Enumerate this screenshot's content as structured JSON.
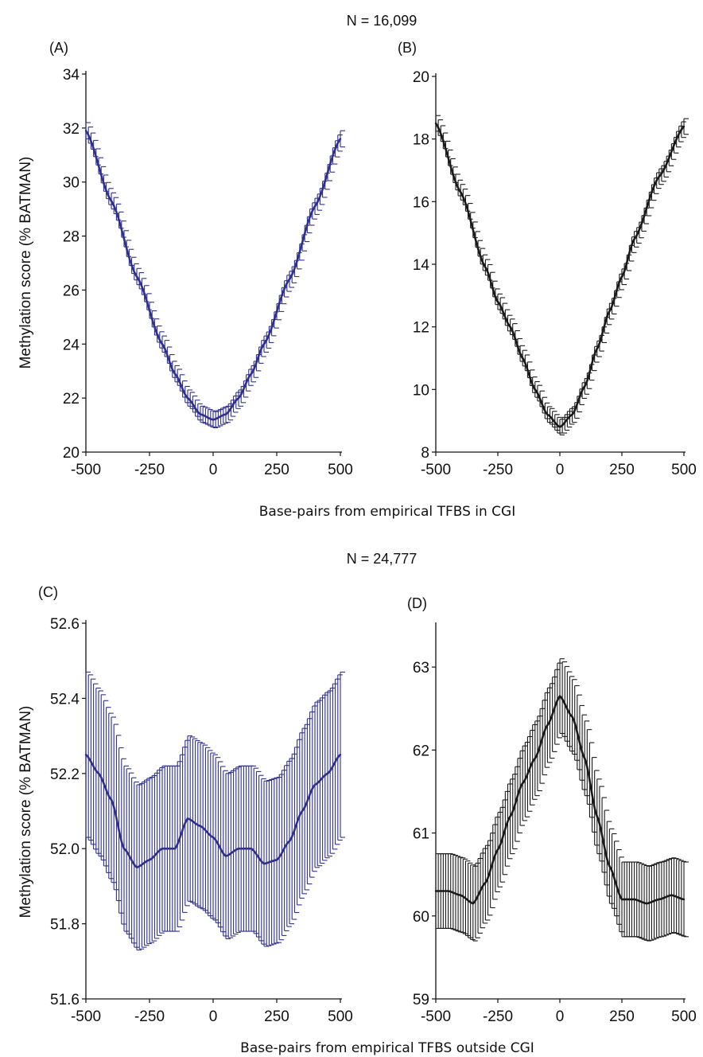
{
  "figure": {
    "top_n_label": "N = 16,099",
    "bottom_n_label": "N = 24,777",
    "top_xlabel": "Base-pairs from empirical TFBS in CGI",
    "bottom_xlabel": "Base-pairs from empirical TFBS outside CGI",
    "ylabel": "Methylation score (% BATMAN)"
  },
  "chart_data": [
    {
      "panel": "(A)",
      "type": "line",
      "color": "#2f2f8f",
      "xlim": [
        -500,
        500
      ],
      "ylim": [
        20,
        34
      ],
      "xticks": [
        -500,
        -250,
        0,
        250,
        500
      ],
      "yticks": [
        20,
        22,
        24,
        26,
        28,
        30,
        32,
        34
      ],
      "error_bars": true,
      "x": [
        -500,
        -400,
        -300,
        -200,
        -150,
        -100,
        -50,
        0,
        50,
        100,
        150,
        200,
        300,
        400,
        500
      ],
      "y": [
        31.9,
        29.3,
        26.5,
        24.0,
        22.9,
        22.0,
        21.4,
        21.2,
        21.4,
        22.0,
        22.9,
        24.0,
        26.4,
        29.1,
        31.6
      ],
      "yerr": 0.3
    },
    {
      "panel": "(B)",
      "type": "line",
      "color": "#1a1a1a",
      "xlim": [
        -500,
        500
      ],
      "ylim": [
        8,
        20
      ],
      "xticks": [
        -500,
        -250,
        0,
        250,
        500
      ],
      "yticks": [
        8,
        10,
        12,
        14,
        16,
        18,
        20
      ],
      "error_bars": true,
      "x": [
        -500,
        -400,
        -300,
        -250,
        -200,
        -150,
        -100,
        -50,
        0,
        50,
        100,
        150,
        200,
        250,
        300,
        400,
        500
      ],
      "y": [
        18.5,
        16.3,
        13.9,
        12.8,
        12.0,
        11.0,
        10.0,
        9.2,
        8.8,
        9.2,
        10.1,
        11.3,
        12.5,
        13.6,
        14.8,
        16.8,
        18.4
      ],
      "yerr": 0.25
    },
    {
      "panel": "(C)",
      "type": "line",
      "color": "#2f2f8f",
      "xlim": [
        -500,
        500
      ],
      "ylim": [
        51.6,
        52.6
      ],
      "xticks": [
        -500,
        -250,
        0,
        250,
        500
      ],
      "yticks": [
        51.6,
        51.8,
        52.0,
        52.2,
        52.4,
        52.6
      ],
      "error_bars": true,
      "x": [
        -500,
        -450,
        -400,
        -350,
        -300,
        -250,
        -200,
        -150,
        -100,
        -50,
        0,
        50,
        100,
        150,
        200,
        250,
        300,
        350,
        400,
        450,
        500
      ],
      "y": [
        52.25,
        52.2,
        52.13,
        52.0,
        51.95,
        51.97,
        52.0,
        52.0,
        52.08,
        52.06,
        52.03,
        51.98,
        52.0,
        52.0,
        51.96,
        51.97,
        52.02,
        52.1,
        52.17,
        52.2,
        52.25
      ],
      "yerr": 0.22
    },
    {
      "panel": "(D)",
      "type": "line",
      "color": "#1a1a1a",
      "xlim": [
        -500,
        500
      ],
      "ylim": [
        59,
        63.5
      ],
      "xticks": [
        -500,
        -250,
        0,
        250,
        500
      ],
      "yticks": [
        59,
        60,
        61,
        62,
        63
      ],
      "error_bars": true,
      "x": [
        -500,
        -450,
        -400,
        -350,
        -300,
        -250,
        -200,
        -150,
        -100,
        -50,
        0,
        50,
        100,
        150,
        200,
        250,
        300,
        350,
        400,
        450,
        500
      ],
      "y": [
        60.3,
        60.3,
        60.25,
        60.15,
        60.4,
        60.8,
        61.2,
        61.6,
        61.9,
        62.3,
        62.65,
        62.4,
        61.9,
        61.2,
        60.6,
        60.2,
        60.2,
        60.15,
        60.2,
        60.25,
        60.2
      ],
      "yerr": 0.45
    }
  ]
}
